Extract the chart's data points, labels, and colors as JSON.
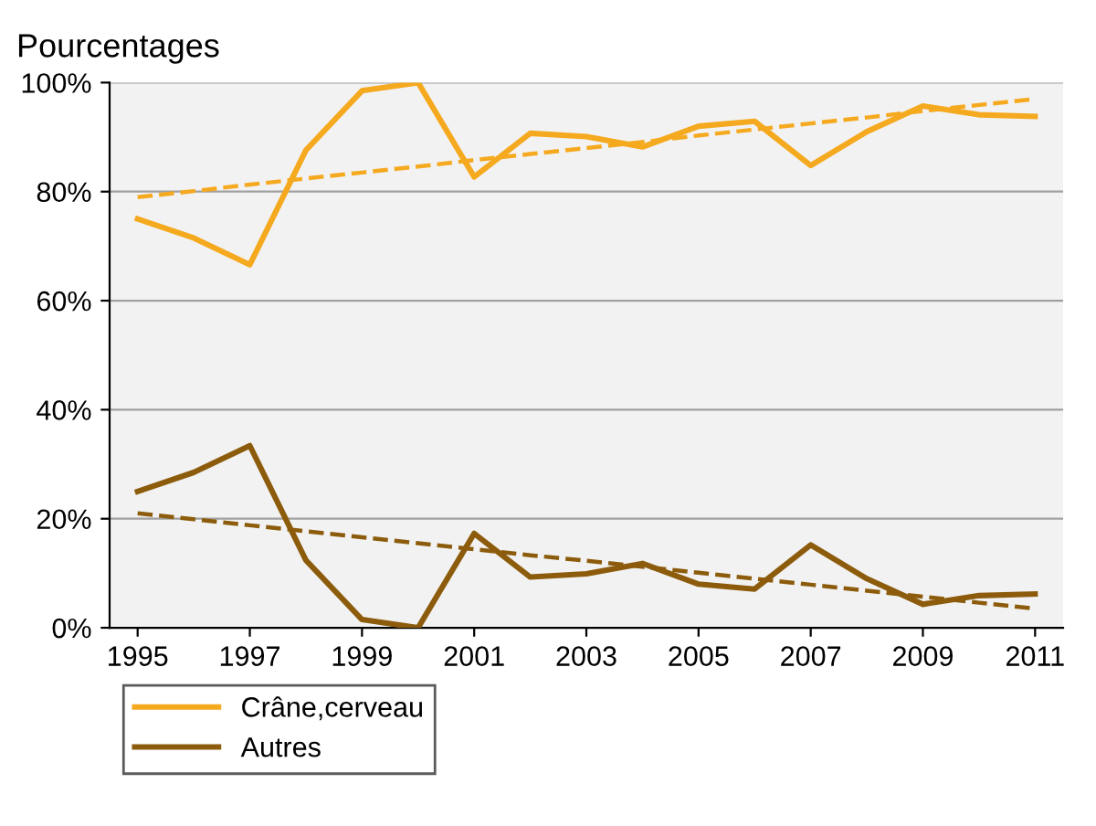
{
  "chart_data": {
    "type": "line",
    "title": "Pourcentages",
    "x": [
      1995,
      1996,
      1997,
      1998,
      1999,
      2000,
      2001,
      2002,
      2003,
      2004,
      2005,
      2006,
      2007,
      2008,
      2009,
      2010,
      2011
    ],
    "series": [
      {
        "name": "Crâne,cerveau",
        "color": "#f5a91e",
        "values": [
          75,
          71.5,
          66.6,
          87.6,
          98.5,
          100,
          82.7,
          90.7,
          90.1,
          88.2,
          92,
          92.9,
          84.8,
          91,
          95.7,
          94.1,
          93.8
        ]
      },
      {
        "name": "Autres",
        "color": "#8c5c0c",
        "values": [
          25,
          28.5,
          33.4,
          12.4,
          1.5,
          0,
          17.3,
          9.3,
          9.9,
          11.8,
          8,
          7.1,
          15.2,
          9,
          4.3,
          5.9,
          6.2
        ]
      },
      {
        "color": "#f5a91e",
        "line_style": "dashed",
        "values": [
          79,
          80.1,
          81.3,
          82.4,
          83.5,
          84.6,
          85.8,
          86.9,
          88,
          89.1,
          90.3,
          91.4,
          92.5,
          93.6,
          94.8,
          95.9,
          97
        ]
      },
      {
        "color": "#8c5c0c",
        "line_style": "dashed",
        "values": [
          21,
          19.9,
          18.8,
          17.7,
          16.6,
          15.5,
          14.4,
          13.3,
          12.3,
          11.2,
          10.1,
          9,
          7.9,
          6.8,
          5.7,
          4.6,
          3.5
        ]
      }
    ],
    "xlim": [
      1994.5,
      2011.5
    ],
    "xticks": [
      1995,
      1997,
      1999,
      2001,
      2003,
      2005,
      2007,
      2009,
      2011
    ],
    "ylim": [
      0,
      100
    ],
    "yticks": [
      {
        "value": 0,
        "label": "0%"
      },
      {
        "value": 20,
        "label": "20%"
      },
      {
        "value": 40,
        "label": "40%"
      },
      {
        "value": 60,
        "label": "60%"
      },
      {
        "value": 80,
        "label": "80%"
      },
      {
        "value": 100,
        "label": "100%"
      }
    ],
    "grid": "y",
    "legend": "bottom left",
    "marker": "none"
  }
}
